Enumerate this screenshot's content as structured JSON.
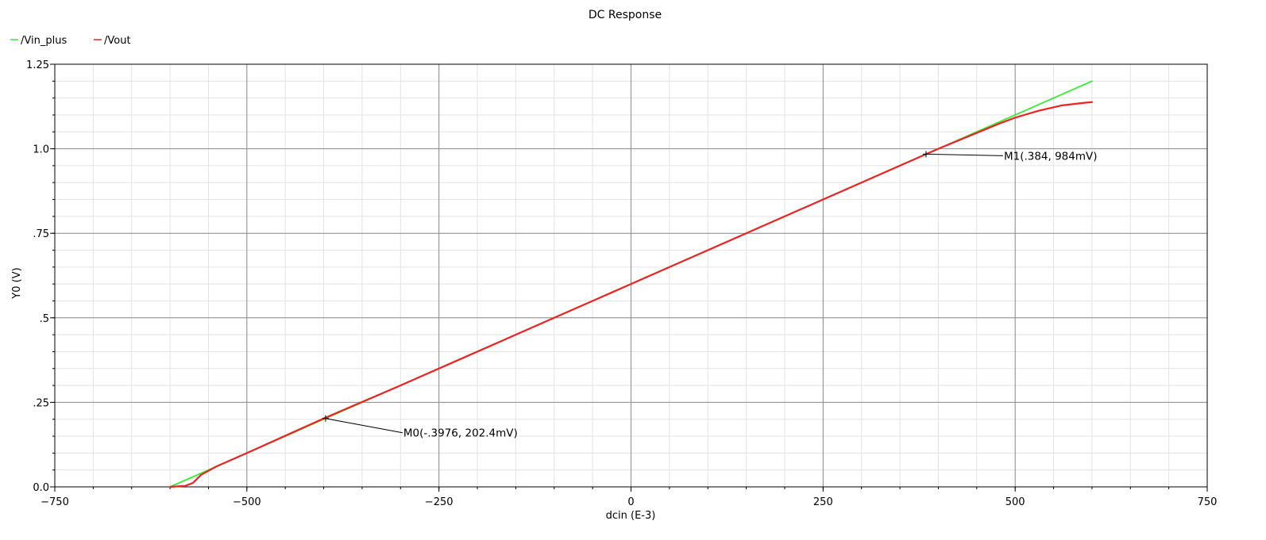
{
  "chart_data": {
    "type": "line",
    "title": "DC Response",
    "xlabel": "dcin (E-3)",
    "ylabel": "Y0 (V)",
    "xlim": [
      -750,
      750
    ],
    "ylim": [
      0,
      1.25
    ],
    "x_ticks": [
      -750,
      -500,
      -250,
      0,
      250,
      500,
      750
    ],
    "x_tick_labels": [
      "−750",
      "−500",
      "−250",
      "0",
      "250",
      "500",
      "750"
    ],
    "y_ticks": [
      0,
      0.25,
      0.5,
      0.75,
      1.0,
      1.25
    ],
    "y_tick_labels": [
      "0.0",
      ".25",
      ".5",
      ".75",
      "1.0",
      "1.25"
    ],
    "grid": true,
    "legend_position": "top-left",
    "series": [
      {
        "name": "/Vin_plus",
        "color": "#33ee33",
        "x": [
          -600,
          600
        ],
        "y": [
          0.0,
          1.2
        ]
      },
      {
        "name": "/Vout",
        "color": "#ee2222",
        "x": [
          -600,
          -580,
          -570,
          -560,
          -540,
          -520,
          -500,
          -400,
          -300,
          -200,
          -100,
          0,
          100,
          200,
          300,
          384,
          400,
          450,
          480,
          500,
          530,
          560,
          590,
          600
        ],
        "y": [
          0.0,
          0.003,
          0.012,
          0.035,
          0.06,
          0.08,
          0.1,
          0.2024,
          0.3,
          0.4,
          0.5,
          0.6,
          0.7,
          0.8,
          0.9,
          0.984,
          1.0,
          1.047,
          1.075,
          1.092,
          1.112,
          1.128,
          1.136,
          1.138
        ]
      }
    ],
    "markers": [
      {
        "label": "M0(-.3976, 202.4mV)",
        "x": -397.6,
        "y": 0.2024
      },
      {
        "label": "M1(.384, 984mV)",
        "x": 384,
        "y": 0.984
      }
    ]
  }
}
